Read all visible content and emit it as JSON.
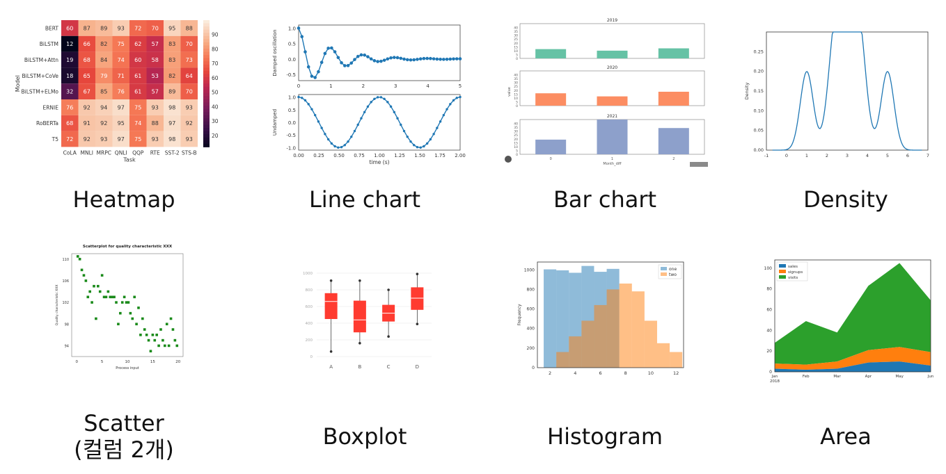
{
  "captions": {
    "heatmap": "Heatmap",
    "line": "Line chart",
    "bar": "Bar chart",
    "density": "Density",
    "scatter": "Scatter\n(컬럼 2개)",
    "boxplot": "Boxplot",
    "histogram": "Histogram",
    "area": "Area"
  },
  "chart_data": [
    {
      "type": "heatmap",
      "ylabel": "Model",
      "xlabel": "Task",
      "rows": [
        "BERT",
        "BiLSTM",
        "BiLSTM+Attn",
        "BiLSTM+CoVe",
        "BiLSTM+ELMo",
        "ERNIE",
        "RoBERTa",
        "T5"
      ],
      "columns": [
        "CoLA",
        "MNLI",
        "MRPC",
        "QNLI",
        "QQP",
        "RTE",
        "SST-2",
        "STS-B"
      ],
      "values": [
        [
          60,
          87,
          89,
          93,
          72,
          70,
          95,
          88
        ],
        [
          12,
          66,
          82,
          75,
          62,
          57,
          83,
          70
        ],
        [
          19,
          68,
          84,
          74,
          60,
          58,
          83,
          73
        ],
        [
          18,
          65,
          79,
          71,
          61,
          53,
          82,
          64
        ],
        [
          32,
          67,
          85,
          76,
          61,
          57,
          89,
          70
        ],
        [
          76,
          92,
          94,
          97,
          75,
          93,
          98,
          93
        ],
        [
          68,
          91,
          92,
          95,
          74,
          88,
          97,
          92
        ],
        [
          72,
          92,
          93,
          97,
          75,
          93,
          98,
          93
        ]
      ],
      "colorbar_ticks": [
        20,
        30,
        40,
        50,
        60,
        70,
        80,
        90
      ]
    },
    {
      "type": "line",
      "subplots": [
        {
          "ylabel": "Damped oscillation",
          "xlim": [
            0,
            5
          ],
          "ylim": [
            -0.7,
            1.1
          ],
          "xticks": [
            0,
            1,
            2,
            3,
            4,
            5
          ],
          "yticks": [
            1.0,
            0.5,
            0.0,
            -0.5
          ],
          "ytick_labels": [
            "1.0",
            "0.5",
            "0.0",
            "-0.5"
          ]
        },
        {
          "ylabel": "Undamped",
          "xlabel": "time (s)",
          "xlim": [
            0,
            2
          ],
          "ylim": [
            -1.1,
            1.1
          ],
          "xticks": [
            0,
            0.25,
            0.5,
            0.75,
            1.0,
            1.25,
            1.5,
            1.75,
            2.0
          ],
          "xtick_labels": [
            "0.00",
            "0.25",
            "0.50",
            "0.75",
            "1.00",
            "1.25",
            "1.50",
            "1.75",
            "2.00"
          ],
          "yticks": [
            1.0,
            0.5,
            0.0,
            -0.5,
            -1.0
          ],
          "ytick_labels": [
            "1.0",
            "0.5",
            "0.0",
            "-0.5",
            "-1.0"
          ]
        }
      ]
    },
    {
      "type": "bar",
      "xlabel": "Month_diff",
      "ylabel": "value",
      "categories": [
        "0",
        "1",
        "2"
      ],
      "ylim": [
        0,
        45
      ],
      "yticks": [
        0,
        5,
        10,
        15,
        20,
        25,
        30,
        35,
        40
      ],
      "facets": [
        {
          "title": "2019",
          "color": "#66c2a5",
          "values": [
            12,
            10,
            13
          ]
        },
        {
          "title": "2020",
          "color": "#fc8d62",
          "values": [
            16,
            12,
            18
          ]
        },
        {
          "title": "2021",
          "color": "#8da0cb",
          "values": [
            19,
            45,
            34
          ]
        }
      ]
    },
    {
      "type": "line",
      "subtype": "density",
      "ylabel": "Density",
      "xlim": [
        -1,
        7
      ],
      "ylim": [
        0,
        0.3
      ],
      "xticks": [
        -1,
        0,
        1,
        2,
        3,
        4,
        5,
        6,
        7
      ],
      "yticks": [
        0.0,
        0.05,
        0.1,
        0.15,
        0.2,
        0.25
      ],
      "ytick_labels": [
        "0.00",
        "0.05",
        "0.10",
        "0.15",
        "0.20",
        "0.25"
      ],
      "color": "#1f77b4"
    },
    {
      "type": "scatter",
      "title": "Scatterplot for quality characteristic XXX",
      "xlabel": "Process input",
      "ylabel": "Quality characteristic XXX",
      "xlim": [
        -1,
        21
      ],
      "ylim": [
        92,
        111
      ],
      "xticks": [
        0,
        5,
        10,
        15,
        20
      ],
      "yticks": [
        94,
        98,
        102,
        106,
        110
      ],
      "color": "#1a8a1a",
      "x": [
        0.2,
        0.6,
        1.0,
        1.4,
        1.8,
        2.2,
        2.6,
        3.0,
        3.4,
        3.8,
        4.2,
        4.6,
        5.0,
        5.4,
        5.8,
        6.2,
        6.6,
        7.0,
        7.4,
        7.8,
        8.2,
        8.6,
        9.0,
        9.4,
        9.8,
        10.2,
        10.6,
        11.0,
        11.4,
        11.8,
        12.2,
        12.6,
        13.0,
        13.4,
        13.8,
        14.2,
        14.6,
        15.0,
        15.4,
        15.8,
        16.2,
        16.6,
        17.0,
        17.4,
        17.8,
        18.2,
        18.6,
        19.0,
        19.4,
        19.8
      ],
      "y": [
        110.5,
        110,
        108,
        107,
        106,
        103,
        104,
        102,
        105,
        99,
        105,
        104,
        107,
        103,
        103,
        104,
        103,
        103,
        103,
        102,
        98,
        100,
        102,
        103,
        102,
        102,
        100,
        99,
        103,
        98,
        101,
        96,
        99,
        97,
        96,
        95,
        93,
        96,
        95,
        96,
        94,
        97,
        95,
        94,
        98,
        94,
        99,
        97,
        95,
        94
      ]
    },
    {
      "type": "boxplot",
      "categories": [
        "A",
        "B",
        "C",
        "D"
      ],
      "ylim": [
        0,
        1000
      ],
      "yticks": [
        0,
        200,
        400,
        600,
        800,
        1000
      ],
      "color": "#ff3b30",
      "boxes": [
        {
          "min": 60,
          "q1": 450,
          "median": 660,
          "q3": 760,
          "max": 910
        },
        {
          "min": 160,
          "q1": 290,
          "median": 440,
          "q3": 670,
          "max": 910
        },
        {
          "min": 240,
          "q1": 420,
          "median": 520,
          "q3": 620,
          "max": 800
        },
        {
          "min": 390,
          "q1": 560,
          "median": 700,
          "q3": 830,
          "max": 990
        }
      ]
    },
    {
      "type": "bar",
      "subtype": "histogram",
      "ylabel": "Frequency",
      "xlim": [
        1,
        12.6
      ],
      "ylim": [
        0,
        1080
      ],
      "xticks": [
        2,
        4,
        6,
        8,
        10,
        12
      ],
      "yticks": [
        0,
        200,
        400,
        600,
        800,
        1000
      ],
      "series": [
        {
          "name": "one",
          "color": "#1f77b4",
          "bins": [
            1.5,
            2.5,
            3.5,
            4.5,
            5.5,
            6.5
          ],
          "values": [
            1005,
            995,
            970,
            1040,
            980,
            1010
          ]
        },
        {
          "name": "two",
          "color": "#ff7f0e",
          "bins": [
            2.5,
            3.5,
            4.5,
            5.5,
            6.5,
            7.5,
            8.5,
            9.5,
            10.5,
            11.5
          ],
          "values": [
            160,
            320,
            480,
            640,
            800,
            860,
            780,
            480,
            250,
            160
          ]
        }
      ]
    },
    {
      "type": "area",
      "categories": [
        "Jan\n2018",
        "Feb",
        "Mar",
        "Apr",
        "May",
        "Jun"
      ],
      "ylim": [
        0,
        108
      ],
      "yticks": [
        0,
        20,
        40,
        60,
        80,
        100
      ],
      "series": [
        {
          "name": "sales",
          "color": "#1f77b4",
          "values": [
            3,
            2,
            3,
            9,
            10,
            6
          ]
        },
        {
          "name": "signups",
          "color": "#ff7f0e",
          "values": [
            5,
            5,
            7,
            12,
            14,
            13
          ]
        },
        {
          "name": "visits",
          "color": "#2ca02c",
          "values": [
            20,
            42,
            28,
            62,
            81,
            50
          ]
        }
      ]
    }
  ]
}
